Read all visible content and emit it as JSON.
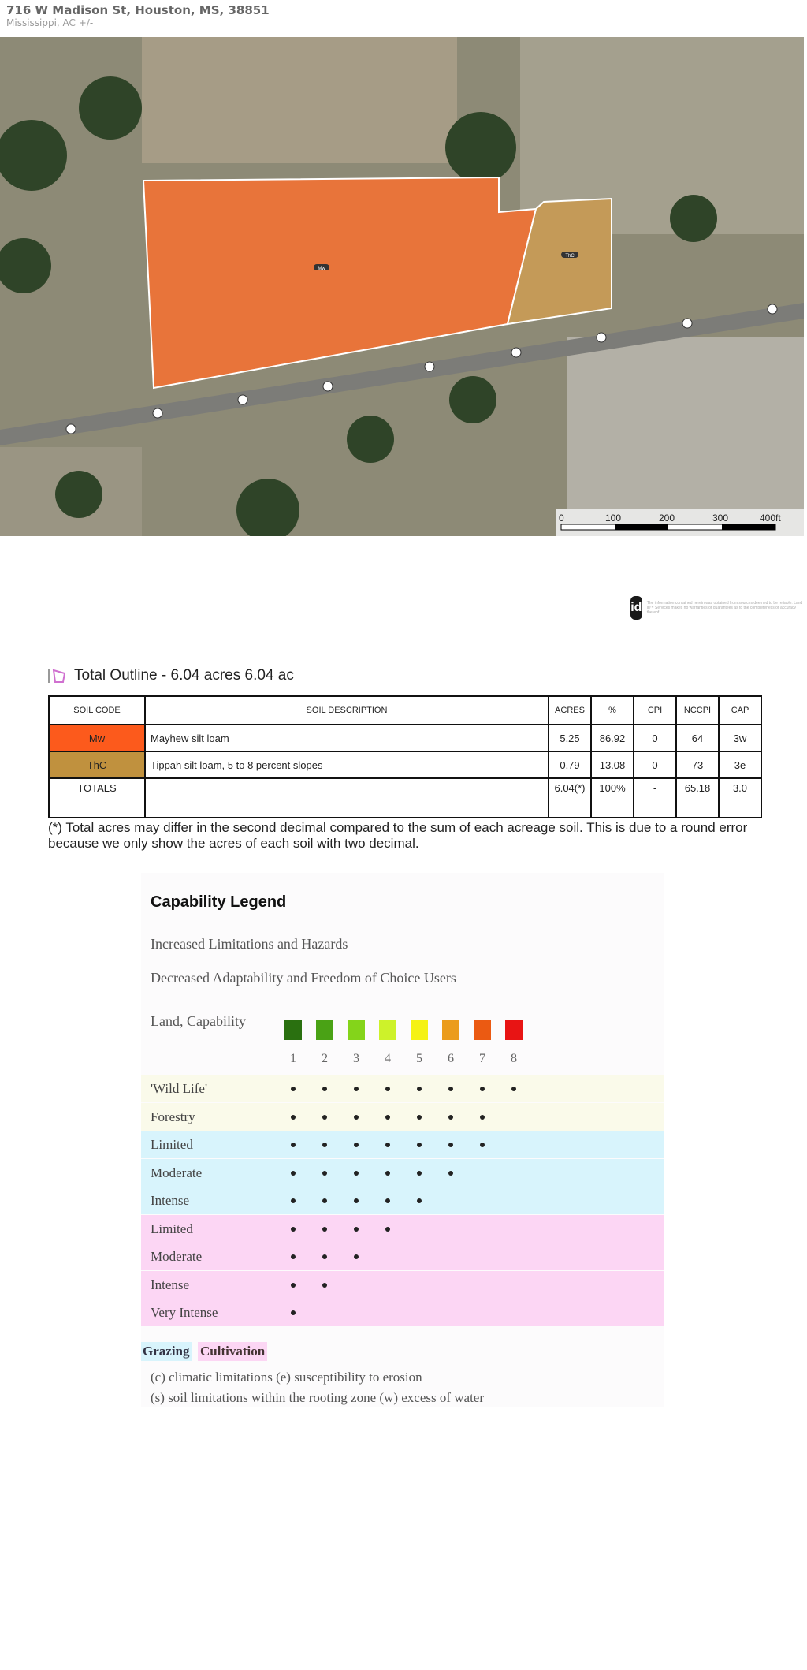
{
  "header": {
    "title": "716 W Madison St, Houston, MS, 38851",
    "subtitle": "Mississippi,  AC +/-"
  },
  "map": {
    "parcels": [
      {
        "code": "Mw",
        "color": "#e8743a"
      },
      {
        "code": "ThC",
        "color": "#c49a58"
      }
    ],
    "scale_bar": {
      "labels": [
        "0",
        "100",
        "200",
        "300",
        "400ft"
      ]
    }
  },
  "disclaimer": {
    "logo": "id",
    "text": "The information contained herein was obtained from sources deemed to be reliable. Land id™ Services makes no warranties or guarantees as to the completeness or accuracy thereof."
  },
  "outline": {
    "icon": "polygon-outline-icon",
    "title": "Total Outline - 6.04 acres 6.04 ac"
  },
  "soil_table": {
    "headers": [
      "SOIL CODE",
      "SOIL DESCRIPTION",
      "ACRES",
      "%",
      "CPI",
      "NCCPI",
      "CAP"
    ],
    "rows": [
      {
        "code": "Mw",
        "color": "#fc5a1c",
        "description": "Mayhew silt loam",
        "acres": "5.25",
        "percent": "86.92",
        "cpi": "0",
        "nccpi": "64",
        "cap": "3w"
      },
      {
        "code": "ThC",
        "color": "#c0913e",
        "description": "Tippah silt loam, 5 to 8 percent slopes",
        "acres": "0.79",
        "percent": "13.08",
        "cpi": "0",
        "nccpi": "73",
        "cap": "3e"
      }
    ],
    "totals": {
      "label": "TOTALS",
      "description": "",
      "acres": "6.04(*)",
      "percent": "100%",
      "cpi": "-",
      "nccpi": "65.18",
      "cap": "3.0"
    }
  },
  "footnote": "(*) Total acres may differ in the second decimal compared to the sum of each acreage soil. This is due to a round error because we only show the acres of each soil with two decimal.",
  "legend": {
    "title": "Capability Legend",
    "line1": "Increased Limitations and Hazards",
    "line2": "Decreased Adaptability and Freedom of Choice Users",
    "land_capability": "Land, Capability",
    "classes": [
      "1",
      "2",
      "3",
      "4",
      "5",
      "6",
      "7",
      "8"
    ],
    "class_colors": [
      "#2a7010",
      "#4aa215",
      "#84d41a",
      "#cdf22a",
      "#f5f214",
      "#eb9c1c",
      "#eb5a12",
      "#e81414"
    ],
    "rows": [
      {
        "label": "'Wild Life'",
        "group": "wildlife",
        "max_class": 8
      },
      {
        "label": "Forestry",
        "group": "wildlife",
        "max_class": 7
      },
      {
        "label": "Limited",
        "group": "grazing",
        "max_class": 7
      },
      {
        "label": "Moderate",
        "group": "grazing",
        "max_class": 6
      },
      {
        "label": "Intense",
        "group": "grazing",
        "max_class": 5
      },
      {
        "label": "Limited",
        "group": "cultivation",
        "max_class": 4
      },
      {
        "label": "Moderate",
        "group": "cultivation",
        "max_class": 3
      },
      {
        "label": "Intense",
        "group": "cultivation",
        "max_class": 2
      },
      {
        "label": "Very Intense",
        "group": "cultivation",
        "max_class": 1
      }
    ],
    "group_colors": {
      "wildlife": "#fafaea",
      "grazing": "#d8f4fc",
      "cultivation": "#fcd6f4"
    },
    "grazing_label": "Grazing",
    "cultivation_label": "Cultivation",
    "note1": "(c) climatic limitations (e) susceptibility to erosion",
    "note2": "(s) soil limitations within the rooting zone (w) excess of water"
  }
}
